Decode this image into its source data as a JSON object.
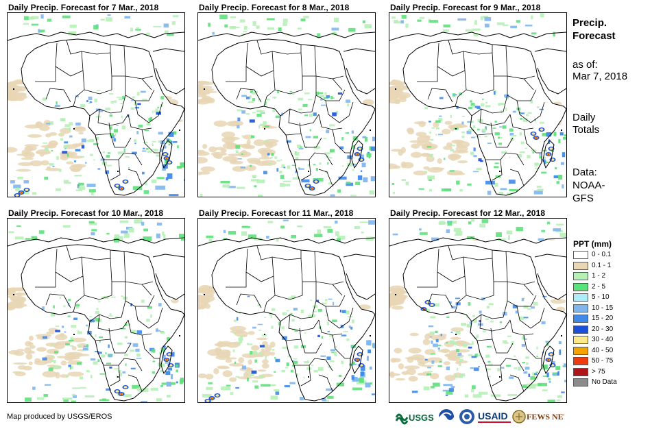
{
  "panels": [
    {
      "title": "Daily Precip. Forecast for 7 Mar., 2018",
      "heavy_rain": [
        "mozambique_channel",
        "southern_africa",
        "southeast_atlantic"
      ]
    },
    {
      "title": "Daily Precip. Forecast for 8 Mar., 2018",
      "heavy_rain": [
        "madagascar",
        "southern_africa"
      ]
    },
    {
      "title": "Daily Precip. Forecast for 9 Mar., 2018",
      "heavy_rain": [
        "madagascar",
        "east_africa"
      ]
    },
    {
      "title": "Daily Precip. Forecast for 10 Mar., 2018",
      "heavy_rain": [
        "madagascar",
        "southern_africa"
      ]
    },
    {
      "title": "Daily Precip. Forecast for 11 Mar., 2018",
      "heavy_rain": [
        "madagascar",
        "southeast_atlantic"
      ]
    },
    {
      "title": "Daily Precip. Forecast for 12 Mar., 2018",
      "heavy_rain": [
        "madagascar",
        "west_africa_coast"
      ]
    }
  ],
  "sidebar": {
    "title_line1": "Precip.",
    "title_line2": "Forecast",
    "asof_label": "as of:",
    "asof_date": "Mar 7, 2018",
    "daily_line1": "Daily",
    "daily_line2": "Totals",
    "data_line1": "Data:",
    "data_line2": "NOAA-",
    "data_line3": "GFS"
  },
  "legend": {
    "title": "PPT (mm)",
    "items": [
      {
        "label": "0 - 0.1",
        "color": "#ffffff"
      },
      {
        "label": "0.1 - 1",
        "color": "#e8d6b4"
      },
      {
        "label": "1 - 2",
        "color": "#b6f0b6"
      },
      {
        "label": "2 - 5",
        "color": "#5ee07a"
      },
      {
        "label": "5 - 10",
        "color": "#aeeaf8"
      },
      {
        "label": "10 - 15",
        "color": "#7fb6ee"
      },
      {
        "label": "15 - 20",
        "color": "#3f8ae8"
      },
      {
        "label": "20 - 30",
        "color": "#1a4fd8"
      },
      {
        "label": "30 - 40",
        "color": "#fde88a"
      },
      {
        "label": "40 - 50",
        "color": "#f5a300"
      },
      {
        "label": "50 - 75",
        "color": "#ef3b12"
      },
      {
        "label": "> 75",
        "color": "#b0151a"
      },
      {
        "label": "No Data",
        "color": "#8c8c8c"
      }
    ]
  },
  "footer": {
    "text": "Map produced by USGS/EROS"
  },
  "logos": [
    {
      "text": "USGS",
      "icon": "usgs-logo"
    },
    {
      "text": "",
      "icon": "noaa-logo"
    },
    {
      "text": "",
      "icon": "nasa-logo"
    },
    {
      "text": "USAID",
      "icon": "usaid-logo"
    },
    {
      "text": "FEWS NET",
      "icon": "fewsnet-logo"
    }
  ]
}
